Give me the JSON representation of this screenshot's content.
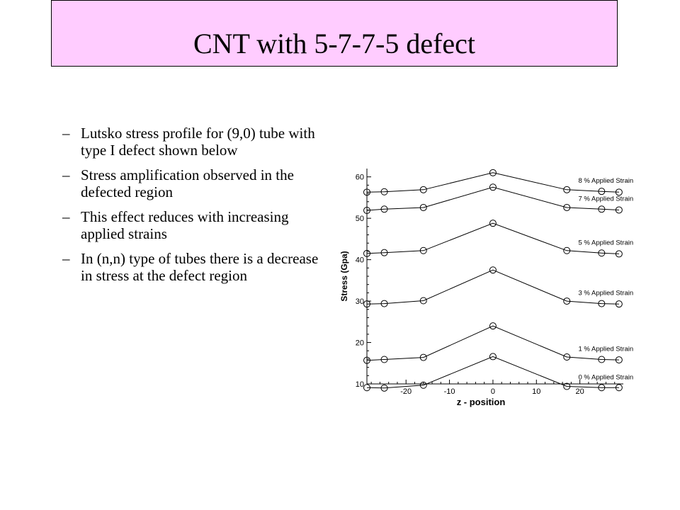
{
  "slide": {
    "title": "CNT with 5-7-7-5 defect",
    "bullet_marker": "–",
    "bullets": [
      "Lutsko stress profile for (9,0) tube with type I defect shown below",
      "Stress amplification observed in the defected region",
      "This effect reduces with increasing applied strains",
      "In (n,n) type of tubes there is a decrease in stress at the defect region"
    ]
  },
  "chart_data": {
    "type": "line",
    "xlabel": "z - position",
    "ylabel": "Stress (Gpa)",
    "xlim": [
      -29,
      30
    ],
    "ylim": [
      10,
      62
    ],
    "xticks": [
      -20,
      -10,
      0,
      10,
      20
    ],
    "yticks": [
      10,
      20,
      30,
      40,
      50,
      60
    ],
    "grid": false,
    "line_color": "#000000",
    "marker": "circle",
    "x": [
      -29,
      -25,
      -16,
      0,
      17,
      25,
      29
    ],
    "series": [
      {
        "name": "0 % Applied Strain",
        "values": [
          9.1,
          9.0,
          9.7,
          16.6,
          9.4,
          9.1,
          9.1
        ]
      },
      {
        "name": "1 % Applied Strain",
        "values": [
          15.7,
          15.9,
          16.4,
          24.0,
          16.5,
          15.9,
          15.8
        ]
      },
      {
        "name": "3 % Applied Strain",
        "values": [
          29.3,
          29.4,
          30.1,
          37.5,
          30.0,
          29.4,
          29.3
        ]
      },
      {
        "name": "5 % Applied Strain",
        "values": [
          41.5,
          41.7,
          42.2,
          48.8,
          42.2,
          41.6,
          41.4
        ]
      },
      {
        "name": "7 % Applied Strain",
        "values": [
          51.9,
          52.2,
          52.6,
          57.5,
          52.6,
          52.2,
          52.0
        ]
      },
      {
        "name": "8 % Applied Strain",
        "values": [
          56.3,
          56.4,
          56.9,
          61.0,
          56.9,
          56.5,
          56.3
        ]
      }
    ]
  }
}
